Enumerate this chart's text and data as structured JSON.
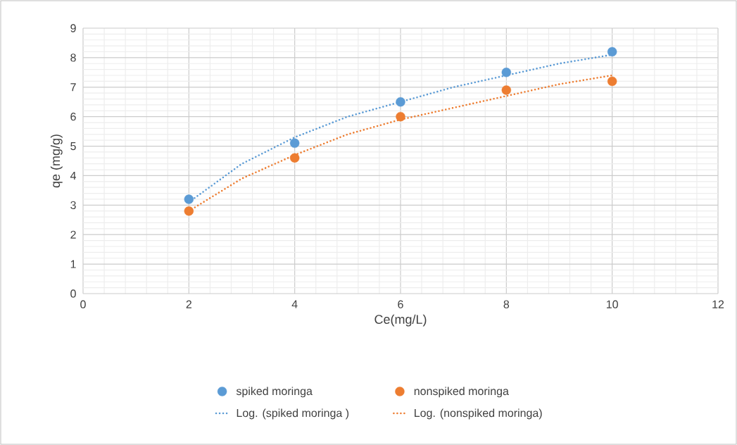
{
  "chart_data": {
    "type": "scatter",
    "xlabel": "Ce(mg/L)",
    "ylabel": "qe (mg/g)",
    "xlim": [
      0,
      12
    ],
    "xticks": [
      0,
      2,
      4,
      6,
      8,
      10,
      12
    ],
    "ylim": [
      0,
      9
    ],
    "yticks": [
      0,
      1,
      2,
      3,
      4,
      5,
      6,
      7,
      8,
      9
    ],
    "grid": true,
    "legend": "bottom",
    "series": [
      {
        "name": "spiked moringa",
        "marker": "circle",
        "color": "#5b9bd5",
        "x": [
          2,
          4,
          6,
          8,
          10
        ],
        "values": [
          3.2,
          5.1,
          6.5,
          7.5,
          8.2
        ]
      },
      {
        "name": "nonspiked moringa",
        "marker": "circle",
        "color": "#ed7d31",
        "x": [
          2,
          4,
          6,
          8,
          10
        ],
        "values": [
          2.8,
          4.6,
          6.0,
          6.9,
          7.2
        ]
      },
      {
        "name": "Log. (spiked moringa )",
        "type": "line",
        "marker": "none",
        "line_style": "dotted",
        "color": "#5b9bd5",
        "x": [
          2,
          3,
          4,
          5,
          6,
          7,
          8,
          9,
          10
        ],
        "values": [
          3.1,
          4.4,
          5.3,
          6.0,
          6.5,
          7.0,
          7.4,
          7.8,
          8.1
        ]
      },
      {
        "name": "Log. (nonspiked moringa)",
        "type": "line",
        "marker": "none",
        "line_style": "dotted",
        "color": "#ed7d31",
        "x": [
          2,
          3,
          4,
          5,
          6,
          7,
          8,
          9,
          10
        ],
        "values": [
          2.8,
          3.9,
          4.7,
          5.4,
          5.9,
          6.3,
          6.7,
          7.1,
          7.4
        ]
      }
    ]
  }
}
